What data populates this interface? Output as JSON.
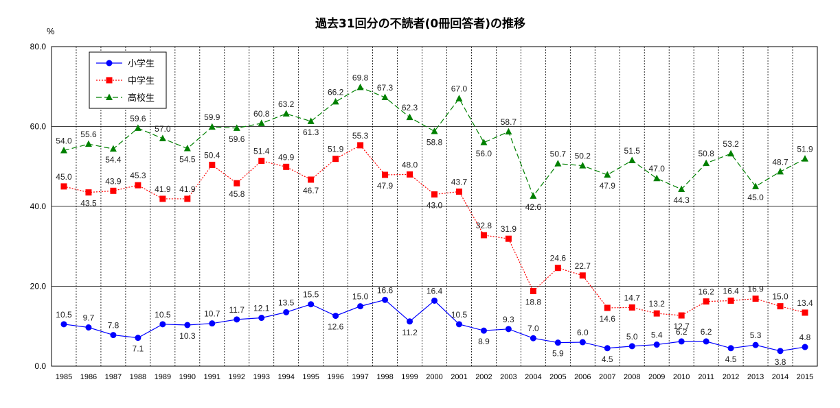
{
  "chart_data": {
    "type": "line",
    "title": "過去31回分の不読者(0冊回答者)の推移",
    "ylabel": "%",
    "ylim": [
      0,
      80
    ],
    "yticks": [
      "0.0",
      "20.0",
      "40.0",
      "60.0",
      "80.0"
    ],
    "categories": [
      "1985",
      "1986",
      "1987",
      "1988",
      "1989",
      "1990",
      "1991",
      "1992",
      "1993",
      "1994",
      "1995",
      "1996",
      "1997",
      "1998",
      "1999",
      "2000",
      "2001",
      "2002",
      "2003",
      "2004",
      "2005",
      "2006",
      "2007",
      "2008",
      "2009",
      "2010",
      "2011",
      "2012",
      "2013",
      "2014",
      "2015"
    ],
    "legend_position": "top-left",
    "grid": true,
    "series": [
      {
        "name": "小学生",
        "color": "#0000ff",
        "line_style": "solid",
        "marker": "circle",
        "values": [
          10.5,
          9.7,
          7.8,
          7.1,
          10.5,
          10.3,
          10.7,
          11.7,
          12.1,
          13.5,
          15.5,
          12.6,
          15.0,
          16.6,
          11.2,
          16.4,
          10.5,
          8.9,
          9.3,
          7.0,
          5.9,
          6.0,
          4.5,
          5.0,
          5.4,
          6.2,
          6.2,
          4.5,
          5.3,
          3.8,
          4.8
        ],
        "labels": [
          "10.5",
          "9.7",
          "7.8",
          "7.1",
          "10.5",
          "10.3",
          "10.7",
          "11.7",
          "12.1",
          "13.5",
          "15.5",
          "12.6",
          "15.0",
          "16.6",
          "11.2",
          "16.4",
          "10.5",
          "8.9",
          "9.3",
          "7.0",
          "5.9",
          "6.0",
          "4.5",
          "5.0",
          "5.4",
          "6.2",
          "6.2",
          "4.5",
          "5.3",
          "3.8",
          "4.8"
        ]
      },
      {
        "name": "中学生",
        "color": "#ff0000",
        "line_style": "dotted",
        "marker": "square",
        "values": [
          45.0,
          43.5,
          43.9,
          45.3,
          41.9,
          41.9,
          50.4,
          45.8,
          51.4,
          49.9,
          46.7,
          51.9,
          55.3,
          47.9,
          48.0,
          43.0,
          43.7,
          32.8,
          31.9,
          18.8,
          24.6,
          22.7,
          14.6,
          14.7,
          13.2,
          12.7,
          16.2,
          16.4,
          16.9,
          15.0,
          13.4
        ],
        "labels": [
          "45.0",
          "43.5",
          "43.9",
          "45.3",
          "41.9",
          "41.9",
          "50.4",
          "45.8",
          "51.4",
          "49.9",
          "46.7",
          "51.9",
          "55.3",
          "47.9",
          "48.0",
          "43.0",
          "43.7",
          "32.8",
          "31.9",
          "18.8",
          "24.6",
          "22.7",
          "14.6",
          "14.7",
          "13.2",
          "12.7",
          "16.2",
          "16.4",
          "16.9",
          "15.0",
          "13.4"
        ]
      },
      {
        "name": "高校生",
        "color": "#008000",
        "line_style": "dashed",
        "marker": "triangle",
        "values": [
          54.0,
          55.6,
          54.4,
          59.6,
          57.0,
          54.5,
          59.9,
          59.6,
          60.8,
          63.2,
          61.3,
          66.2,
          69.8,
          67.3,
          62.3,
          58.8,
          67.0,
          56.0,
          58.7,
          42.6,
          50.7,
          50.2,
          47.9,
          51.5,
          47.0,
          44.3,
          50.8,
          53.2,
          45.0,
          48.7,
          51.9
        ],
        "labels": [
          "54.0",
          "55.6",
          "54.4",
          "59.6",
          "57.0",
          "54.5",
          "59.9",
          "59.6",
          "60.8",
          "63.2",
          "61.3",
          "66.2",
          "69.8",
          "67.3",
          "62.3",
          "58.8",
          "67.0",
          "56.0",
          "58.7",
          "42.6",
          "50.7",
          "50.2",
          "47.9",
          "51.5",
          "47.0",
          "44.3",
          "50.8",
          "53.2",
          "45.0",
          "48.7",
          "51.9"
        ]
      }
    ]
  }
}
